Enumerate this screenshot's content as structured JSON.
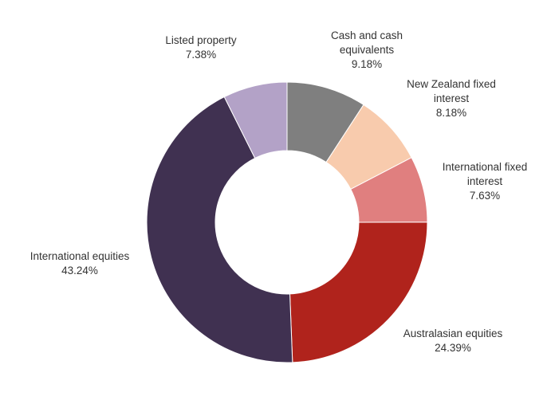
{
  "chart_data": {
    "type": "pie",
    "subtype": "donut",
    "title": "",
    "legend": "none",
    "slices": [
      {
        "label_lines": [
          "Cash and cash",
          "equivalents"
        ],
        "label": "Cash and cash equivalents",
        "value_label": "9.18%",
        "value": 9.18,
        "color": "#7f7f7f"
      },
      {
        "label_lines": [
          "New Zealand fixed",
          "interest"
        ],
        "label": "New Zealand fixed interest",
        "value_label": "8.18%",
        "value": 8.18,
        "color": "#f8cbad"
      },
      {
        "label_lines": [
          "International fixed",
          "interest"
        ],
        "label": "International fixed interest",
        "value_label": "7.63%",
        "value": 7.63,
        "color": "#e07f7f"
      },
      {
        "label_lines": [
          "Australasian equities"
        ],
        "label": "Australasian equities",
        "value_label": "24.39%",
        "value": 24.39,
        "color": "#b0231c"
      },
      {
        "label_lines": [
          "International equities"
        ],
        "label": "International equities",
        "value_label": "43.24%",
        "value": 43.24,
        "color": "#403151"
      },
      {
        "label_lines": [
          "Listed property"
        ],
        "label": "Listed property",
        "value_label": "7.38%",
        "value": 7.38,
        "color": "#b3a2c7"
      }
    ]
  }
}
